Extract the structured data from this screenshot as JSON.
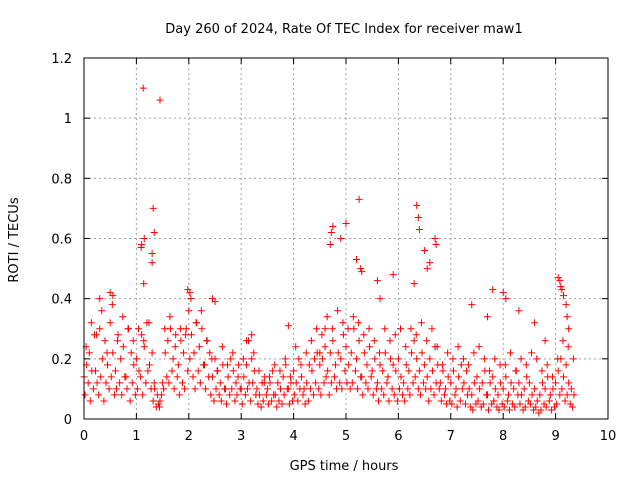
{
  "chart_data": {
    "type": "scatter",
    "title": "Day 260 of 2024, Rate Of TEC Index for receiver maw1",
    "xlabel": "GPS time / hours",
    "ylabel": "ROTI / TECUs",
    "xlim": [
      0,
      10
    ],
    "ylim": [
      0,
      1.2
    ],
    "x_ticks": [
      0,
      1,
      2,
      3,
      4,
      5,
      6,
      7,
      8,
      9,
      10
    ],
    "x_tick_labels": [
      "0",
      "1",
      "2",
      "3",
      "4",
      "5",
      "6",
      "7",
      "8",
      "9",
      "10"
    ],
    "y_ticks": [
      0,
      0.2,
      0.4,
      0.6,
      0.8,
      1.0,
      1.2
    ],
    "y_tick_labels": [
      "0",
      "0.2",
      "0.4",
      "0.6",
      "0.8",
      "1",
      "1.2"
    ],
    "grid": true,
    "marker": "plus",
    "series": [
      {
        "name": "maw1",
        "color": "#ff0000",
        "x": [
          0.0,
          0.05,
          0.1,
          0.15,
          0.2,
          0.25,
          0.3,
          0.35,
          0.4,
          0.45,
          0.5,
          0.55,
          0.6,
          0.65,
          0.7,
          0.75,
          0.8,
          0.85,
          0.9,
          0.95,
          1.0,
          1.05,
          1.1,
          1.15,
          1.2,
          1.25,
          1.3,
          1.35,
          1.4,
          1.45,
          1.5,
          1.55,
          1.6,
          1.65,
          1.7,
          1.75,
          1.8,
          1.85,
          1.9,
          1.95,
          2.0,
          2.05,
          2.1,
          2.15,
          2.2,
          2.25,
          2.3,
          2.35,
          2.4,
          2.45,
          2.5,
          2.55,
          2.6,
          2.65,
          2.7,
          2.75,
          2.8,
          2.85,
          2.9,
          2.95,
          3.0,
          3.05,
          3.1,
          3.15,
          3.2,
          3.25,
          3.3,
          3.35,
          3.4,
          3.45,
          3.5,
          3.55,
          3.6,
          3.65,
          3.7,
          3.75,
          3.8,
          3.85,
          3.9,
          3.95,
          4.0,
          4.05,
          4.1,
          4.15,
          4.2,
          4.25,
          4.3,
          4.35,
          4.4,
          4.45,
          4.5,
          4.55,
          4.6,
          4.65,
          4.7,
          4.75,
          4.8,
          4.85,
          4.9,
          4.95,
          5.0,
          5.05,
          5.1,
          5.15,
          5.2,
          5.25,
          5.3,
          5.35,
          5.4,
          5.45,
          5.5,
          5.55,
          5.6,
          5.65,
          5.7,
          5.75,
          5.8,
          5.85,
          5.9,
          5.95,
          6.0,
          6.05,
          6.1,
          6.15,
          6.2,
          6.25,
          6.3,
          6.35,
          6.4,
          6.45,
          6.5,
          6.55,
          6.6,
          6.65,
          6.7,
          6.75,
          6.8,
          6.85,
          6.9,
          6.95,
          7.0,
          7.05,
          7.1,
          7.15,
          7.2,
          7.25,
          7.3,
          7.35,
          7.4,
          7.45,
          7.5,
          7.55,
          7.6,
          7.65,
          7.7,
          7.75,
          7.8,
          7.85,
          7.9,
          7.95,
          8.0,
          8.05,
          8.1,
          8.15,
          8.2,
          8.25,
          8.3,
          8.35,
          8.4,
          8.45,
          8.5,
          8.55,
          8.6,
          8.65,
          8.7,
          8.75,
          8.8,
          8.85,
          8.9,
          8.95,
          9.0,
          9.05,
          9.1,
          9.15,
          9.2,
          9.25,
          9.3,
          9.35,
          0.02,
          0.08,
          0.12,
          0.18,
          0.22,
          0.28,
          0.32,
          0.38,
          0.42,
          0.48,
          0.52,
          0.58,
          0.62,
          0.68,
          0.72,
          0.78,
          0.82,
          0.88,
          0.92,
          0.98,
          1.02,
          1.08,
          1.12,
          1.18,
          1.22,
          1.28,
          1.32,
          1.38,
          1.42,
          1.48,
          1.52,
          1.58,
          1.62,
          1.68,
          1.72,
          1.78,
          1.82,
          1.88,
          1.92,
          1.98,
          2.02,
          2.08,
          2.12,
          2.18,
          2.22,
          2.28,
          2.32,
          2.38,
          2.42,
          2.48,
          2.52,
          2.58,
          2.62,
          2.68,
          2.72,
          2.78,
          2.82,
          2.88,
          2.92,
          2.98,
          3.02,
          3.08,
          3.12,
          3.18,
          3.22,
          3.28,
          3.32,
          3.38,
          3.42,
          3.48,
          3.52,
          3.58,
          3.62,
          3.68,
          3.72,
          3.78,
          3.82,
          3.88,
          3.92,
          3.98,
          4.02,
          4.08,
          4.12,
          4.18,
          4.22,
          4.28,
          4.32,
          4.38,
          4.42,
          4.48,
          4.52,
          4.58,
          4.62,
          4.68,
          4.72,
          4.78,
          4.82,
          4.88,
          4.92,
          4.98,
          5.02,
          5.08,
          5.12,
          5.18,
          5.22,
          5.28,
          5.32,
          5.38,
          5.42,
          5.48,
          5.52,
          5.58,
          5.62,
          5.68,
          5.72,
          5.78,
          5.82,
          5.88,
          5.92,
          5.98,
          6.02,
          6.08,
          6.12,
          6.18,
          6.22,
          6.28,
          6.32,
          6.38,
          6.42,
          6.48,
          6.52,
          6.58,
          6.62,
          6.68,
          6.72,
          6.78,
          6.82,
          6.88,
          6.92,
          6.98,
          7.02,
          7.08,
          7.12,
          7.18,
          7.22,
          7.28,
          7.32,
          7.38,
          7.42,
          7.48,
          7.52,
          7.58,
          7.62,
          7.68,
          7.72,
          7.78,
          7.82,
          7.88,
          7.92,
          7.98,
          8.02,
          8.08,
          8.12,
          8.18,
          8.22,
          8.28,
          8.32,
          8.38,
          8.42,
          8.48,
          8.52,
          8.58,
          8.62,
          8.68,
          8.72,
          8.78,
          8.82,
          8.88,
          8.92,
          8.98,
          9.02,
          9.08,
          9.12,
          9.18,
          9.22,
          9.28,
          9.32,
          0.04,
          0.14,
          0.24,
          0.34,
          0.44,
          0.54,
          0.64,
          0.74,
          0.84,
          0.94,
          1.04,
          1.14,
          1.24,
          1.34,
          1.44,
          1.54,
          1.64,
          1.74,
          1.84,
          1.94,
          2.04,
          2.14,
          2.24,
          2.34,
          2.44,
          2.54,
          2.64,
          2.74,
          2.84,
          2.94,
          3.04,
          3.14,
          3.24,
          3.34,
          3.44,
          3.54,
          3.64,
          3.74,
          3.84,
          3.94,
          4.04,
          4.14,
          4.24,
          4.34,
          4.44,
          4.54,
          4.64,
          4.74,
          4.84,
          4.94,
          5.04,
          5.14,
          5.24,
          5.34,
          5.44,
          5.54,
          5.64,
          5.74,
          5.84,
          5.94,
          6.04,
          6.14,
          6.24,
          6.34,
          6.44,
          6.54,
          6.64,
          6.74,
          6.84,
          6.94,
          7.04,
          7.14,
          7.24,
          7.34,
          7.44,
          7.54,
          7.64,
          7.74,
          7.84,
          7.94,
          8.04,
          8.14,
          8.24,
          8.34,
          8.44,
          8.54,
          8.64,
          8.74,
          8.84,
          8.94,
          9.04,
          9.14,
          9.24,
          9.34,
          1.13,
          1.15,
          1.09,
          1.14,
          1.1,
          1.32,
          1.34,
          1.3,
          1.3,
          1.45,
          4.7,
          4.72,
          4.75,
          4.9,
          5.0,
          5.2,
          5.25,
          5.28,
          5.3,
          5.6,
          5.65,
          5.9,
          6.3,
          6.35,
          6.38,
          6.4,
          6.5,
          6.55,
          6.6,
          6.7,
          6.72,
          0.3,
          0.5,
          0.55,
          1.98,
          2.02,
          2.5,
          2.45,
          3.1,
          3.2,
          3.9,
          4.5,
          4.6,
          7.4,
          7.7,
          7.8,
          8.0,
          8.05,
          8.3,
          8.6,
          8.8,
          9.05,
          9.08,
          9.1,
          9.12,
          9.15,
          9.2,
          9.22,
          9.25
        ],
        "y": [
          0.14,
          0.18,
          0.22,
          0.16,
          0.28,
          0.12,
          0.3,
          0.2,
          0.26,
          0.18,
          0.32,
          0.22,
          0.16,
          0.28,
          0.2,
          0.24,
          0.14,
          0.3,
          0.22,
          0.18,
          0.2,
          0.16,
          0.28,
          0.24,
          0.32,
          0.18,
          0.22,
          0.1,
          0.08,
          0.06,
          0.12,
          0.22,
          0.26,
          0.3,
          0.2,
          0.28,
          0.18,
          0.26,
          0.22,
          0.3,
          0.36,
          0.28,
          0.22,
          0.32,
          0.24,
          0.3,
          0.18,
          0.26,
          0.22,
          0.14,
          0.2,
          0.16,
          0.12,
          0.18,
          0.1,
          0.14,
          0.2,
          0.16,
          0.12,
          0.18,
          0.1,
          0.14,
          0.18,
          0.12,
          0.2,
          0.16,
          0.1,
          0.08,
          0.12,
          0.14,
          0.1,
          0.12,
          0.16,
          0.08,
          0.12,
          0.1,
          0.14,
          0.18,
          0.1,
          0.12,
          0.16,
          0.12,
          0.2,
          0.14,
          0.1,
          0.12,
          0.18,
          0.16,
          0.2,
          0.22,
          0.18,
          0.2,
          0.24,
          0.16,
          0.22,
          0.26,
          0.18,
          0.22,
          0.2,
          0.28,
          0.24,
          0.18,
          0.22,
          0.3,
          0.2,
          0.26,
          0.14,
          0.22,
          0.18,
          0.24,
          0.16,
          0.2,
          0.12,
          0.18,
          0.16,
          0.22,
          0.14,
          0.2,
          0.18,
          0.16,
          0.2,
          0.14,
          0.12,
          0.18,
          0.16,
          0.22,
          0.26,
          0.2,
          0.16,
          0.22,
          0.18,
          0.14,
          0.2,
          0.16,
          0.24,
          0.18,
          0.12,
          0.16,
          0.1,
          0.14,
          0.12,
          0.16,
          0.1,
          0.14,
          0.18,
          0.12,
          0.16,
          0.1,
          0.08,
          0.12,
          0.14,
          0.1,
          0.12,
          0.16,
          0.08,
          0.12,
          0.14,
          0.1,
          0.08,
          0.12,
          0.1,
          0.14,
          0.08,
          0.12,
          0.1,
          0.16,
          0.12,
          0.08,
          0.1,
          0.14,
          0.12,
          0.08,
          0.1,
          0.06,
          0.08,
          0.12,
          0.1,
          0.14,
          0.08,
          0.1,
          0.12,
          0.16,
          0.2,
          0.14,
          0.18,
          0.12,
          0.1,
          0.08,
          0.08,
          0.12,
          0.06,
          0.1,
          0.16,
          0.08,
          0.14,
          0.06,
          0.12,
          0.1,
          0.14,
          0.08,
          0.1,
          0.12,
          0.08,
          0.14,
          0.1,
          0.06,
          0.12,
          0.08,
          0.1,
          0.14,
          0.08,
          0.12,
          0.16,
          0.1,
          0.06,
          0.04,
          0.05,
          0.08,
          0.1,
          0.14,
          0.12,
          0.16,
          0.1,
          0.14,
          0.08,
          0.12,
          0.1,
          0.16,
          0.2,
          0.14,
          0.1,
          0.16,
          0.12,
          0.18,
          0.1,
          0.14,
          0.08,
          0.06,
          0.1,
          0.08,
          0.06,
          0.1,
          0.05,
          0.08,
          0.1,
          0.06,
          0.08,
          0.1,
          0.05,
          0.08,
          0.1,
          0.06,
          0.12,
          0.08,
          0.05,
          0.04,
          0.06,
          0.08,
          0.05,
          0.06,
          0.08,
          0.04,
          0.06,
          0.05,
          0.08,
          0.1,
          0.05,
          0.06,
          0.08,
          0.06,
          0.1,
          0.08,
          0.05,
          0.06,
          0.1,
          0.08,
          0.12,
          0.1,
          0.08,
          0.12,
          0.14,
          0.08,
          0.12,
          0.14,
          0.1,
          0.12,
          0.1,
          0.16,
          0.12,
          0.1,
          0.12,
          0.16,
          0.1,
          0.14,
          0.08,
          0.12,
          0.1,
          0.14,
          0.08,
          0.1,
          0.06,
          0.1,
          0.08,
          0.12,
          0.06,
          0.1,
          0.08,
          0.06,
          0.1,
          0.08,
          0.06,
          0.1,
          0.08,
          0.12,
          0.14,
          0.1,
          0.08,
          0.12,
          0.1,
          0.06,
          0.1,
          0.08,
          0.12,
          0.1,
          0.06,
          0.08,
          0.05,
          0.06,
          0.05,
          0.08,
          0.04,
          0.06,
          0.1,
          0.05,
          0.08,
          0.04,
          0.03,
          0.05,
          0.06,
          0.04,
          0.05,
          0.08,
          0.03,
          0.05,
          0.06,
          0.04,
          0.03,
          0.05,
          0.04,
          0.06,
          0.03,
          0.05,
          0.04,
          0.08,
          0.05,
          0.03,
          0.04,
          0.06,
          0.05,
          0.03,
          0.04,
          0.02,
          0.03,
          0.05,
          0.04,
          0.06,
          0.03,
          0.04,
          0.05,
          0.08,
          0.1,
          0.06,
          0.08,
          0.05,
          0.04,
          0.24,
          0.32,
          0.28,
          0.36,
          0.22,
          0.38,
          0.26,
          0.34,
          0.3,
          0.26,
          0.3,
          0.26,
          0.32,
          0.12,
          0.04,
          0.3,
          0.34,
          0.24,
          0.3,
          0.28,
          0.4,
          0.32,
          0.36,
          0.26,
          0.2,
          0.16,
          0.24,
          0.18,
          0.22,
          0.14,
          0.2,
          0.26,
          0.22,
          0.16,
          0.12,
          0.14,
          0.18,
          0.16,
          0.2,
          0.14,
          0.24,
          0.18,
          0.22,
          0.26,
          0.3,
          0.28,
          0.34,
          0.3,
          0.36,
          0.32,
          0.3,
          0.34,
          0.32,
          0.28,
          0.3,
          0.26,
          0.22,
          0.3,
          0.26,
          0.28,
          0.3,
          0.24,
          0.3,
          0.28,
          0.32,
          0.26,
          0.3,
          0.24,
          0.18,
          0.22,
          0.2,
          0.24,
          0.2,
          0.18,
          0.22,
          0.24,
          0.2,
          0.16,
          0.2,
          0.18,
          0.18,
          0.22,
          0.16,
          0.2,
          0.18,
          0.22,
          0.2,
          0.16,
          0.18,
          0.14,
          0.2,
          0.26,
          0.24,
          0.2,
          1.1,
          0.6,
          0.57,
          0.45,
          0.58,
          0.7,
          0.62,
          0.55,
          0.52,
          1.06,
          0.58,
          0.62,
          0.64,
          0.6,
          0.65,
          0.53,
          0.73,
          0.5,
          0.49,
          0.46,
          0.4,
          0.48,
          0.45,
          0.71,
          0.67,
          0.63,
          0.56,
          0.5,
          0.52,
          0.6,
          0.58,
          0.4,
          0.42,
          0.41,
          0.43,
          0.42,
          0.39,
          0.4,
          0.26,
          0.28,
          0.31,
          0.22,
          0.3,
          0.38,
          0.34,
          0.43,
          0.42,
          0.4,
          0.36,
          0.32,
          0.26,
          0.47,
          0.46,
          0.44,
          0.43,
          0.41,
          0.38,
          0.34,
          0.3
        ]
      }
    ]
  }
}
